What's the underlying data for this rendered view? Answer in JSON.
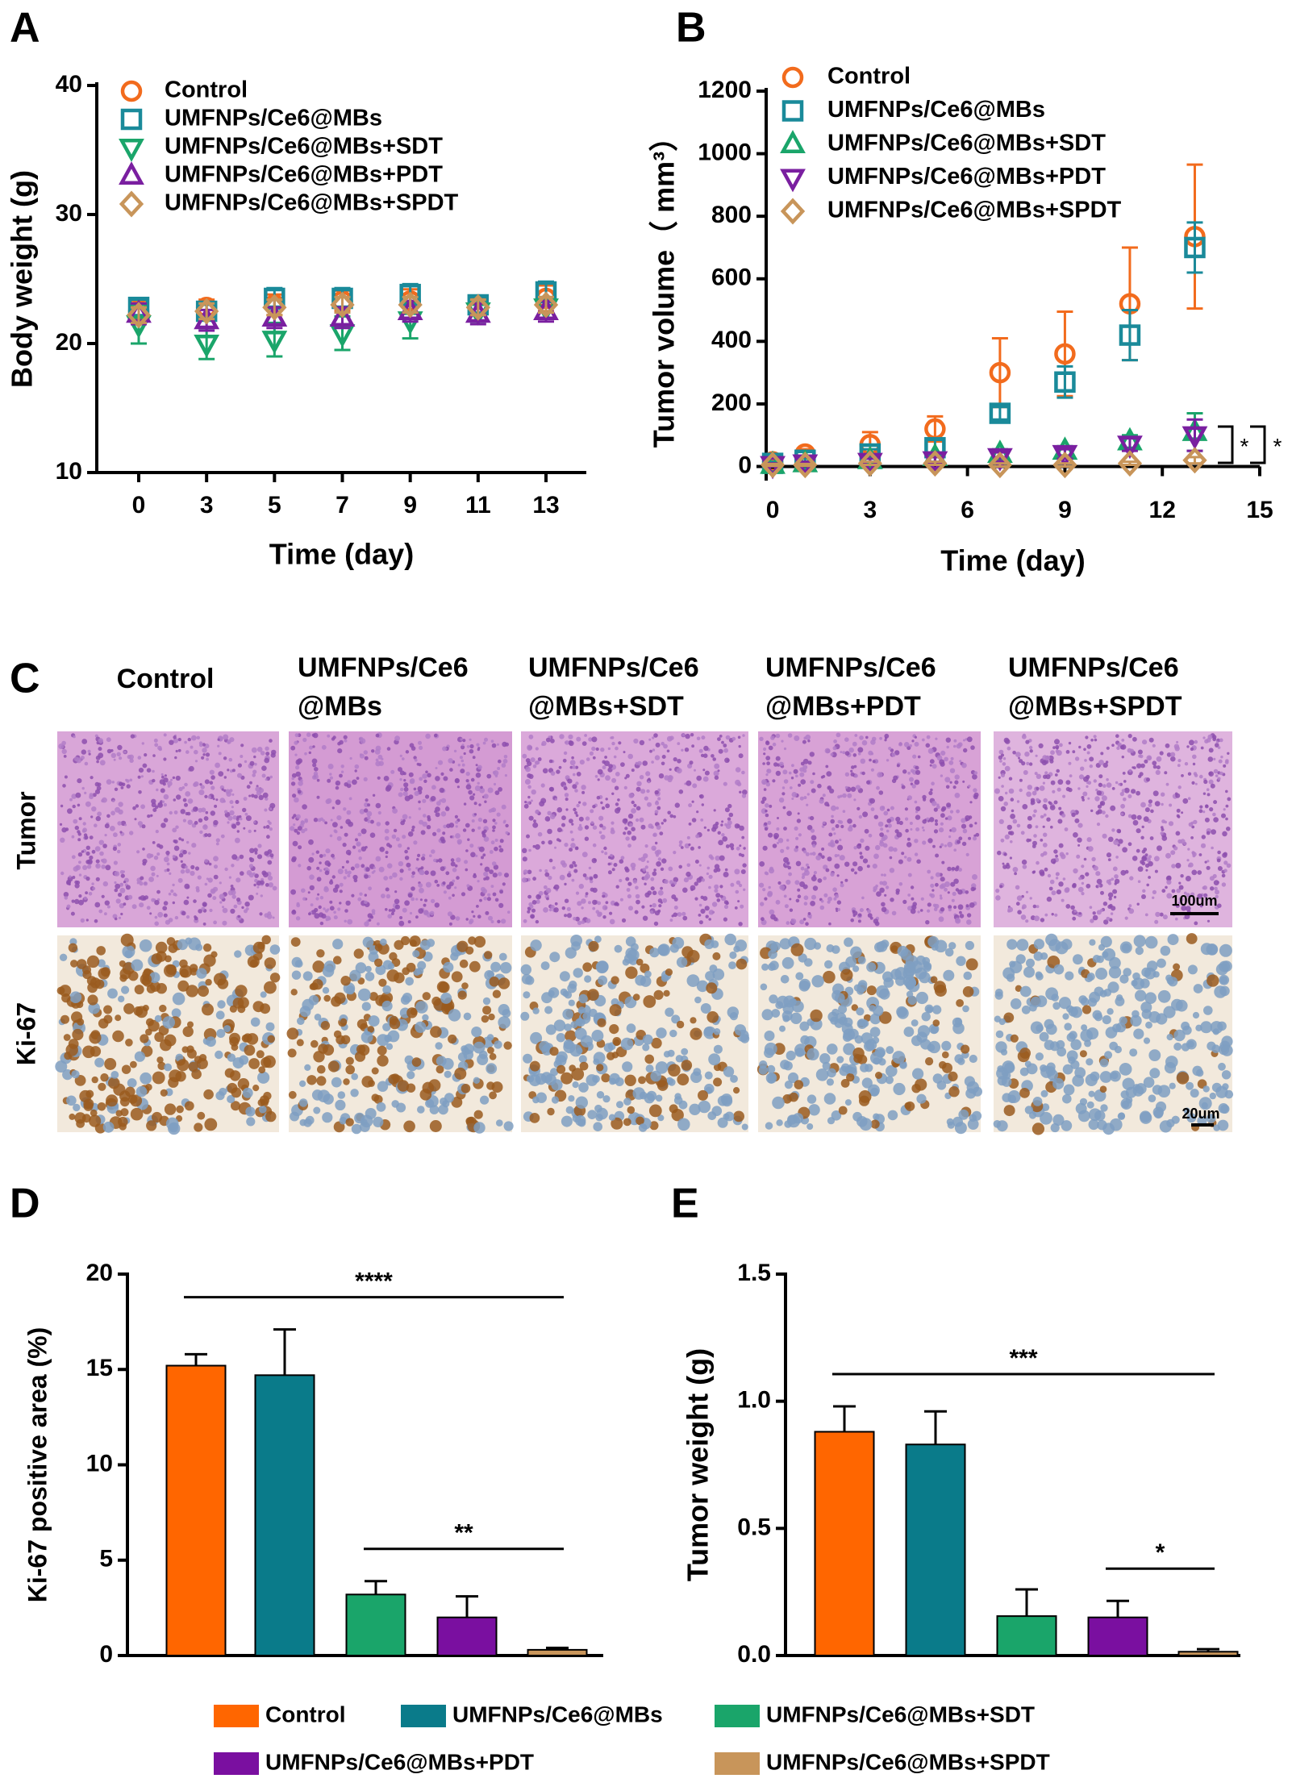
{
  "panel_labels": [
    "A",
    "B",
    "C",
    "D",
    "E"
  ],
  "chart_data": [
    {
      "type": "scatter",
      "ylabel": "Body weight (g)",
      "xlabel": "Time (day)",
      "categories": [
        "0",
        "3",
        "5",
        "7",
        "9",
        "11",
        "13"
      ],
      "ylim": [
        10,
        40
      ],
      "yticks": [
        10,
        20,
        30,
        40
      ],
      "series": [
        {
          "name": "Control",
          "color": "#f26b1d",
          "marker": "circle",
          "values": [
            22.5,
            22.8,
            23.0,
            23.3,
            23.3,
            23.0,
            23.5
          ],
          "errors": [
            0.8,
            0.6,
            0.8,
            0.8,
            0.9,
            0.7,
            1.0
          ]
        },
        {
          "name": "UMFNPs/Ce6@MBs",
          "color": "#1a8a9a",
          "marker": "square",
          "values": [
            22.8,
            22.5,
            23.5,
            23.5,
            23.8,
            23.0,
            24.0
          ],
          "errors": [
            0.6,
            0.5,
            0.8,
            0.8,
            0.8,
            0.6,
            0.8
          ]
        },
        {
          "name": "UMFNPs/Ce6@MBs+SDT",
          "color": "#1aa56a",
          "marker": "tri-down",
          "values": [
            21.5,
            20.0,
            20.3,
            20.8,
            21.8,
            22.5,
            22.8
          ],
          "errors": [
            1.5,
            1.2,
            1.3,
            1.3,
            1.4,
            0.8,
            0.8
          ]
        },
        {
          "name": "UMFNPs/Ce6@MBs+PDT",
          "color": "#7a1fa0",
          "marker": "tri-up",
          "values": [
            22.3,
            21.8,
            22.0,
            22.0,
            22.5,
            22.3,
            22.5
          ],
          "errors": [
            0.8,
            0.8,
            0.8,
            0.8,
            0.8,
            0.8,
            0.8
          ]
        },
        {
          "name": "UMFNPs/Ce6@MBs+SPDT",
          "color": "#c8955a",
          "marker": "diamond",
          "values": [
            22.2,
            22.5,
            22.8,
            23.0,
            23.0,
            22.8,
            23.0
          ],
          "errors": [
            0.6,
            0.6,
            0.6,
            0.6,
            0.6,
            0.6,
            0.6
          ]
        }
      ]
    },
    {
      "type": "scatter",
      "ylabel": "Tumor volume（ mm³）",
      "xlabel": "Time (day)",
      "x": [
        0,
        1,
        3,
        5,
        7,
        9,
        11,
        13
      ],
      "xlim": [
        -0.2,
        15
      ],
      "xticks": [
        0,
        3,
        6,
        9,
        12,
        15
      ],
      "ylim": [
        -40,
        1200
      ],
      "yticks": [
        0,
        200,
        400,
        600,
        800,
        1000,
        1200
      ],
      "series": [
        {
          "name": "Control",
          "color": "#f26b1d",
          "marker": "circle",
          "values": [
            15,
            40,
            70,
            120,
            300,
            360,
            520,
            735
          ],
          "errors": [
            10,
            15,
            40,
            40,
            110,
            135,
            180,
            230
          ]
        },
        {
          "name": "UMFNPs/Ce6@MBs",
          "color": "#1a8a9a",
          "marker": "square",
          "values": [
            10,
            20,
            40,
            60,
            170,
            270,
            420,
            700
          ],
          "errors": [
            5,
            8,
            15,
            25,
            20,
            50,
            80,
            80
          ]
        },
        {
          "name": "UMFNPs/Ce6@MBs+SDT",
          "color": "#1aa56a",
          "marker": "tri-up",
          "values": [
            5,
            10,
            20,
            30,
            40,
            50,
            80,
            110
          ],
          "errors": [
            5,
            5,
            10,
            15,
            15,
            15,
            20,
            60
          ]
        },
        {
          "name": "UMFNPs/Ce6@MBs+PDT",
          "color": "#7a1fa0",
          "marker": "tri-down",
          "values": [
            5,
            10,
            15,
            20,
            30,
            40,
            70,
            100
          ],
          "errors": [
            5,
            5,
            10,
            10,
            15,
            15,
            20,
            50
          ]
        },
        {
          "name": "UMFNPs/Ce6@MBs+SPDT",
          "color": "#c8955a",
          "marker": "diamond",
          "values": [
            5,
            5,
            10,
            10,
            5,
            5,
            10,
            20
          ],
          "errors": [
            3,
            3,
            5,
            5,
            5,
            5,
            5,
            10
          ]
        }
      ],
      "annotations": [
        "*",
        "*"
      ]
    },
    {
      "type": "bar",
      "ylabel": "Ki-67 positive area (%)",
      "values": [
        15.2,
        14.7,
        3.2,
        2.0,
        0.3
      ],
      "errors": [
        0.6,
        2.4,
        0.7,
        1.1,
        0.1
      ],
      "colors": [
        "#ff6600",
        "#0a7b8a",
        "#1aa56a",
        "#7a0fa0",
        "#c8955a"
      ],
      "ylim": [
        0,
        20
      ],
      "yticks": [
        0,
        5,
        10,
        15,
        20
      ],
      "annotations": [
        {
          "text": "****",
          "from": 0,
          "to": 4
        },
        {
          "text": "**",
          "from": 2,
          "to": 4
        }
      ]
    },
    {
      "type": "bar",
      "ylabel": "Tumor weight (g)",
      "values": [
        0.88,
        0.83,
        0.155,
        0.15,
        0.015
      ],
      "errors": [
        0.1,
        0.13,
        0.105,
        0.065,
        0.01
      ],
      "colors": [
        "#ff6600",
        "#0a7b8a",
        "#1aa56a",
        "#7a0fa0",
        "#c8955a"
      ],
      "ylim": [
        0,
        1.5
      ],
      "yticks": [
        {
          "value": 0,
          "label": "0.0"
        },
        0.5,
        {
          "value": 1,
          "label": "1.0"
        },
        1.5
      ],
      "annotations": [
        {
          "text": "***",
          "from": 0,
          "to": 4
        },
        {
          "text": "*",
          "from": 3,
          "to": 4
        }
      ]
    }
  ],
  "histology": {
    "columns": [
      [
        "Control"
      ],
      [
        "UMFNPs/Ce6",
        "@MBs"
      ],
      [
        "UMFNPs/Ce6",
        "@MBs+SDT"
      ],
      [
        "UMFNPs/Ce6",
        "@MBs+PDT"
      ],
      [
        "UMFNPs/Ce6",
        "@MBs+SPDT"
      ]
    ],
    "rows": [
      "Tumor",
      "Ki-67"
    ],
    "scale_bars": [
      "100um",
      "20um"
    ]
  },
  "legend": {
    "names": [
      "Control",
      "UMFNPs/Ce6@MBs",
      "UMFNPs/Ce6@MBs+SDT",
      "UMFNPs/Ce6@MBs+PDT",
      "UMFNPs/Ce6@MBs+SPDT"
    ]
  }
}
